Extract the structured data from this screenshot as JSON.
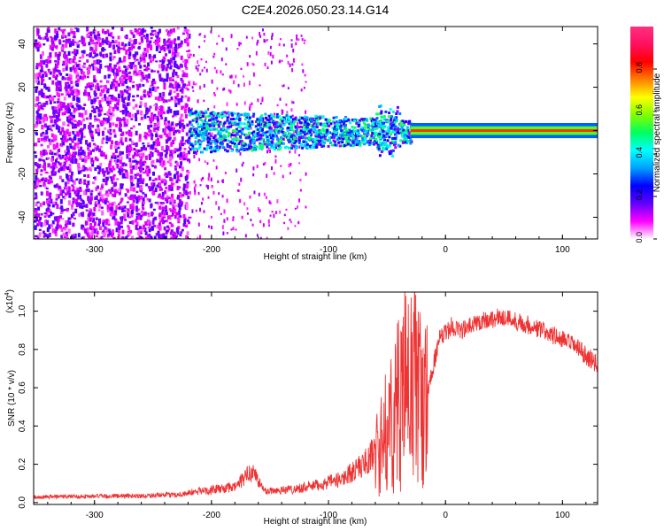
{
  "title": "C2E4.2026.050.23.14.G14",
  "chart_data": [
    {
      "type": "heatmap",
      "name": "spectrogram",
      "xlabel": "Height of straight line (km)",
      "ylabel": "Frequency (Hz)",
      "xlim": [
        -352,
        130
      ],
      "ylim": [
        -50,
        48
      ],
      "xticks": [
        -300,
        -200,
        -100,
        0,
        100
      ],
      "xtick_labels": [
        "-300",
        "-200",
        "-100",
        "0",
        "100"
      ],
      "yticks": [
        -40,
        -20,
        0,
        20,
        40
      ],
      "ytick_labels": [
        "-40",
        "-20",
        "0",
        "20",
        "40"
      ],
      "colorbar": {
        "label": "Normalized spectral amplitude",
        "range": [
          0,
          1
        ],
        "ticks": [
          0.0,
          0.2,
          0.4,
          0.6,
          0.8
        ],
        "tick_labels": [
          "0.0",
          "0.2",
          "0.4",
          "0.6",
          "0.8"
        ],
        "colormap": [
          "#ffffff",
          "#ff00ff",
          "#6000ff",
          "#0000ff",
          "#00a0ff",
          "#00ffff",
          "#00ff60",
          "#80ff00",
          "#ffff00",
          "#ff8000",
          "#ff0000",
          "#ff1060",
          "#ff3080"
        ]
      },
      "regions": [
        {
          "description": "scattered noise",
          "x_range": [
            -352,
            -220
          ],
          "freq_range": [
            -50,
            48
          ],
          "amplitude": 0.15
        },
        {
          "description": "signal onset",
          "x_range": [
            -220,
            -30
          ],
          "freq_range": [
            -10,
            10
          ],
          "amplitude": 0.3
        },
        {
          "description": "tracked carrier",
          "x_range": [
            -30,
            130
          ],
          "freq_range": [
            -2,
            2
          ],
          "amplitude": 0.8
        }
      ]
    },
    {
      "type": "line",
      "name": "snr",
      "xlabel": "Height of straight line (km)",
      "ylabel": "SNR (10 * v/v)",
      "scale_label": "(x10",
      "scale_exp": "4",
      "scale_close": ")",
      "xlim": [
        -352,
        130
      ],
      "ylim": [
        -0.01,
        1.1
      ],
      "xticks": [
        -300,
        -200,
        -100,
        0,
        100
      ],
      "xtick_labels": [
        "-300",
        "-200",
        "-100",
        "0",
        "100"
      ],
      "yticks": [
        0.0,
        0.2,
        0.4,
        0.6,
        0.8,
        1.0
      ],
      "ytick_labels": [
        "0.0",
        "0.2",
        "0.4",
        "0.6",
        "0.8",
        "1.0"
      ],
      "color": "#ee3333",
      "envelope": {
        "x": [
          -352,
          -260,
          -230,
          -210,
          -180,
          -165,
          -155,
          -130,
          -110,
          -90,
          -70,
          -55,
          -45,
          -35,
          -25,
          -18,
          -12,
          -5,
          5,
          15,
          30,
          50,
          70,
          90,
          110,
          130
        ],
        "y": [
          0.03,
          0.035,
          0.04,
          0.06,
          0.08,
          0.17,
          0.06,
          0.07,
          0.09,
          0.12,
          0.2,
          0.3,
          0.45,
          0.6,
          0.65,
          0.45,
          0.68,
          0.85,
          0.92,
          0.9,
          0.95,
          0.97,
          0.93,
          0.88,
          0.82,
          0.72
        ]
      }
    }
  ]
}
